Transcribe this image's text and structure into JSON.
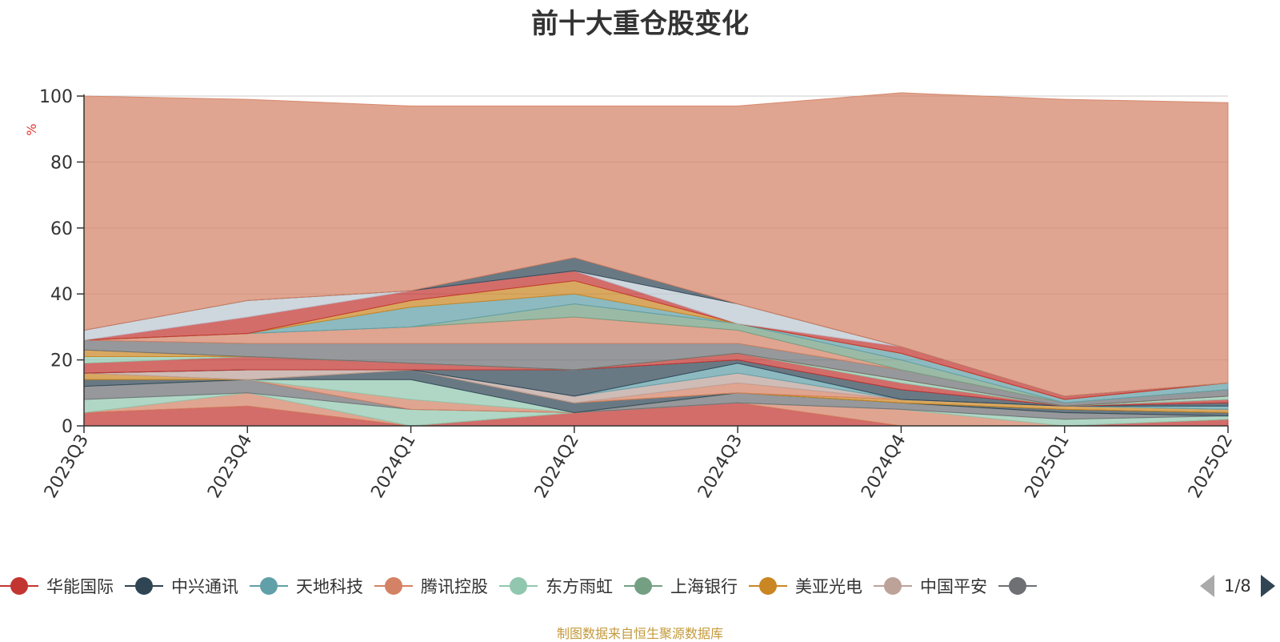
{
  "title": "前十大重仓股变化",
  "source_note": "制图数据来自恒生聚源数据库",
  "legend_page": "1/8",
  "colors": {
    "axis": "#333333",
    "grid": "#cccccc",
    "unit_label": "#e3342f",
    "pager_active": "#2f4554",
    "pager_inactive": "#aaaaaa",
    "source_text": "#c49a3c"
  },
  "legend": [
    {
      "name": "华能国际",
      "color": "#c23531"
    },
    {
      "name": "中兴通讯",
      "color": "#2f4554"
    },
    {
      "name": "天地科技",
      "color": "#61a0a8"
    },
    {
      "name": "腾讯控股",
      "color": "#d48265"
    },
    {
      "name": "东方雨虹",
      "color": "#91c7ae"
    },
    {
      "name": "上海银行",
      "color": "#749f83"
    },
    {
      "name": "美亚光电",
      "color": "#ca8622"
    },
    {
      "name": "中国平安",
      "color": "#bda29a"
    },
    {
      "name": "",
      "color": "#6e7074"
    }
  ],
  "chart_data": {
    "type": "area",
    "stacked": true,
    "title": "前十大重仓股变化",
    "ylabel": "%",
    "xlabel": "",
    "categories": [
      "2023Q3",
      "2023Q4",
      "2024Q1",
      "2024Q2",
      "2024Q3",
      "2024Q4",
      "2025Q1",
      "2025Q2"
    ],
    "ylim": [
      0,
      100
    ],
    "yticks": [
      0,
      20,
      40,
      60,
      80,
      100
    ],
    "grid": true,
    "legend_position": "bottom",
    "series": [
      {
        "color": "#c23531",
        "values": [
          4,
          6,
          0,
          4,
          7,
          0,
          0,
          2
        ]
      },
      {
        "color": "#d48265",
        "values": [
          0,
          4,
          0,
          0,
          0,
          5,
          0,
          0
        ]
      },
      {
        "color": "#91c7ae",
        "values": [
          4,
          0,
          5,
          0,
          0,
          0,
          2,
          1
        ]
      },
      {
        "color": "#6e7074",
        "values": [
          4,
          4,
          0,
          0,
          3,
          2,
          2,
          0
        ]
      },
      {
        "color": "#d48265",
        "values": [
          0,
          0,
          3,
          0,
          0,
          0,
          0,
          0
        ]
      },
      {
        "color": "#91c7ae",
        "values": [
          0,
          0,
          6,
          0,
          0,
          0,
          0,
          0
        ]
      },
      {
        "color": "#2f4554",
        "values": [
          2,
          0,
          3,
          3,
          0,
          0,
          1,
          1
        ]
      },
      {
        "color": "#ca8622",
        "values": [
          2,
          0,
          0,
          0,
          0,
          1,
          1,
          1
        ]
      },
      {
        "color": "#d48265",
        "values": [
          0,
          0,
          0,
          0,
          3,
          0,
          0,
          0
        ]
      },
      {
        "color": "#bda29a",
        "values": [
          0,
          3,
          0,
          2,
          3,
          0,
          0,
          0
        ]
      },
      {
        "color": "#61a0a8",
        "values": [
          0,
          0,
          0,
          0,
          3,
          0,
          0,
          1
        ]
      },
      {
        "color": "#2f4554",
        "values": [
          0,
          0,
          0,
          8,
          1,
          3,
          0,
          1
        ]
      },
      {
        "color": "#c23531",
        "values": [
          3,
          4,
          2,
          0,
          2,
          2,
          0,
          1
        ]
      },
      {
        "color": "#91c7ae",
        "values": [
          2,
          0,
          0,
          0,
          0,
          1,
          0,
          1
        ]
      },
      {
        "color": "#ca8622",
        "values": [
          2,
          0,
          0,
          0,
          0,
          0,
          0,
          0
        ]
      },
      {
        "color": "#6e7074",
        "values": [
          3,
          4,
          6,
          8,
          3,
          3,
          1,
          2
        ]
      },
      {
        "color": "#d48265",
        "values": [
          0,
          3,
          5,
          8,
          4,
          0,
          0,
          0
        ]
      },
      {
        "color": "#749f83",
        "values": [
          0,
          0,
          0,
          4,
          2,
          3,
          0,
          0
        ]
      },
      {
        "color": "#61a0a8",
        "values": [
          0,
          0,
          6,
          3,
          0,
          2,
          1,
          2
        ]
      },
      {
        "color": "#ca8622",
        "values": [
          0,
          0,
          2,
          4,
          0,
          0,
          0,
          0
        ]
      },
      {
        "color": "#c23531",
        "values": [
          0,
          5,
          3,
          3,
          0,
          2,
          1,
          0
        ]
      },
      {
        "color": "#bdc7d1",
        "values": [
          3,
          5,
          0,
          0,
          6,
          0,
          0,
          0
        ]
      },
      {
        "color": "#2f4554",
        "values": [
          0,
          0,
          0,
          4,
          0,
          0,
          0,
          0
        ]
      },
      {
        "color": "#d48265",
        "values": [
          71,
          61,
          56,
          46,
          60,
          77,
          90,
          85
        ]
      }
    ]
  }
}
